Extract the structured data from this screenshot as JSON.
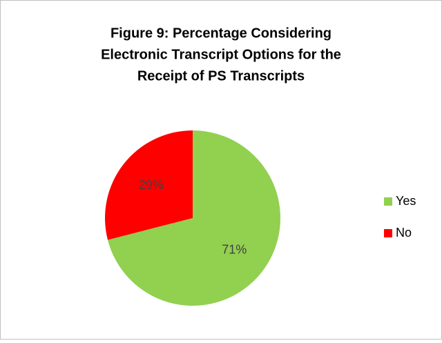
{
  "chart_data": {
    "type": "pie",
    "title": [
      "Figure 9: Percentage Considering",
      "Electronic Transcript Options for the",
      "Receipt of PS Transcripts"
    ],
    "categories": [
      "Yes",
      "No"
    ],
    "values": [
      71,
      29
    ],
    "value_labels": [
      "71%",
      "29%"
    ],
    "colors": [
      "#92d050",
      "#ff0000"
    ],
    "legend": "right"
  }
}
